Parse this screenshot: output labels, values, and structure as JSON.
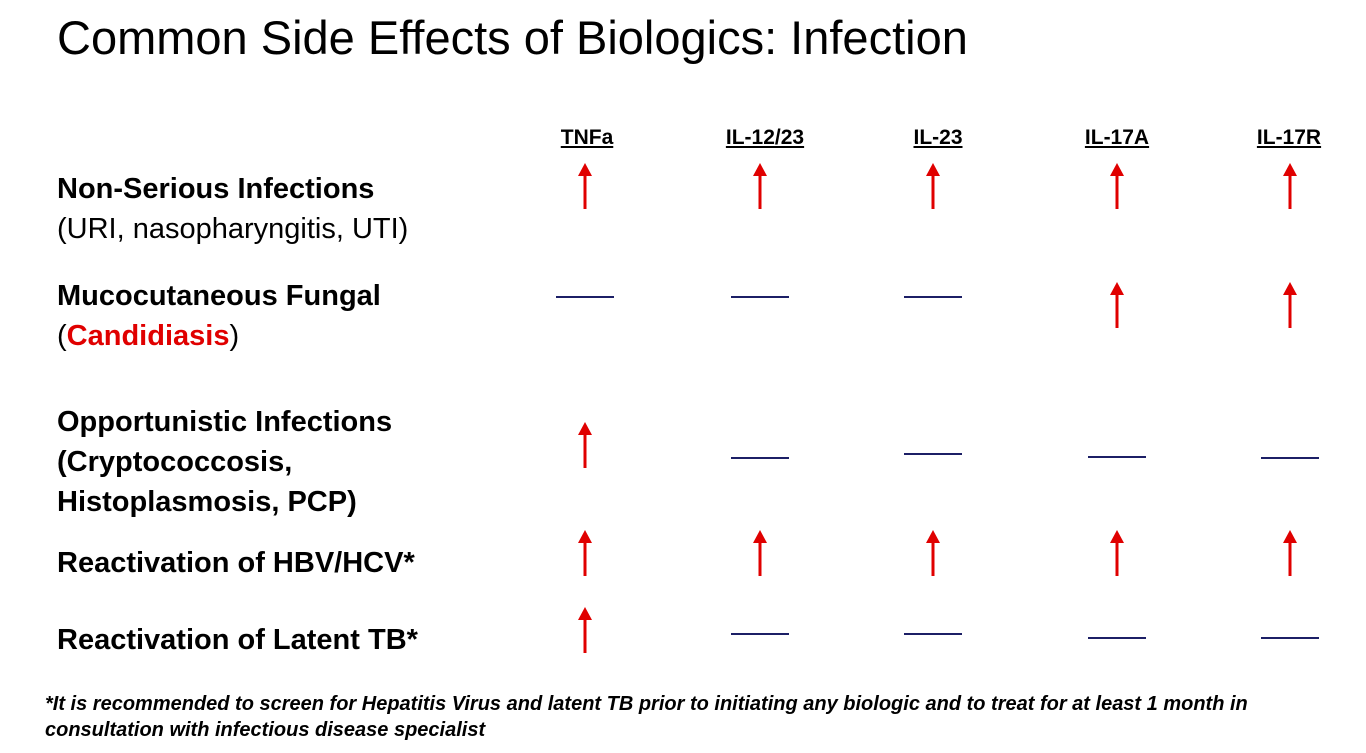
{
  "title": "Common Side Effects of Biologics: Infection",
  "columns": [
    "TNFa",
    "IL-12/23",
    "IL-23",
    "IL-17A",
    "IL-17R"
  ],
  "rows": [
    {
      "label_line1": "Non-Serious Infections",
      "label_line2": "(URI, nasopharyngitis, UTI)",
      "values": [
        "increased",
        "increased",
        "increased",
        "increased",
        "increased"
      ]
    },
    {
      "label_line1": "Mucocutaneous Fungal",
      "label_line2_open": "(",
      "label_line2_highlight": "Candidiasis",
      "label_line2_close": ")",
      "highlight_color": "#e00000",
      "values": [
        "none",
        "none",
        "none",
        "increased",
        "increased"
      ]
    },
    {
      "label_line1": "Opportunistic Infections",
      "label_line2": "(Cryptococcosis,",
      "label_line3": "Histoplasmosis, PCP)",
      "values": [
        "increased",
        "none",
        "none",
        "none",
        "none"
      ]
    },
    {
      "label_line1": "Reactivation of HBV/HCV*",
      "values": [
        "increased",
        "increased",
        "increased",
        "increased",
        "increased"
      ]
    },
    {
      "label_line1": "Reactivation of Latent TB*",
      "values": [
        "increased",
        "none",
        "none",
        "none",
        "none"
      ]
    }
  ],
  "footnote": "*It is recommended to screen for Hepatitis Virus and latent TB prior to initiating any biologic and to treat for at least 1 month in consultation with infectious disease specialist",
  "colors": {
    "arrow": "#e00000",
    "dash": "#1c1f66"
  }
}
